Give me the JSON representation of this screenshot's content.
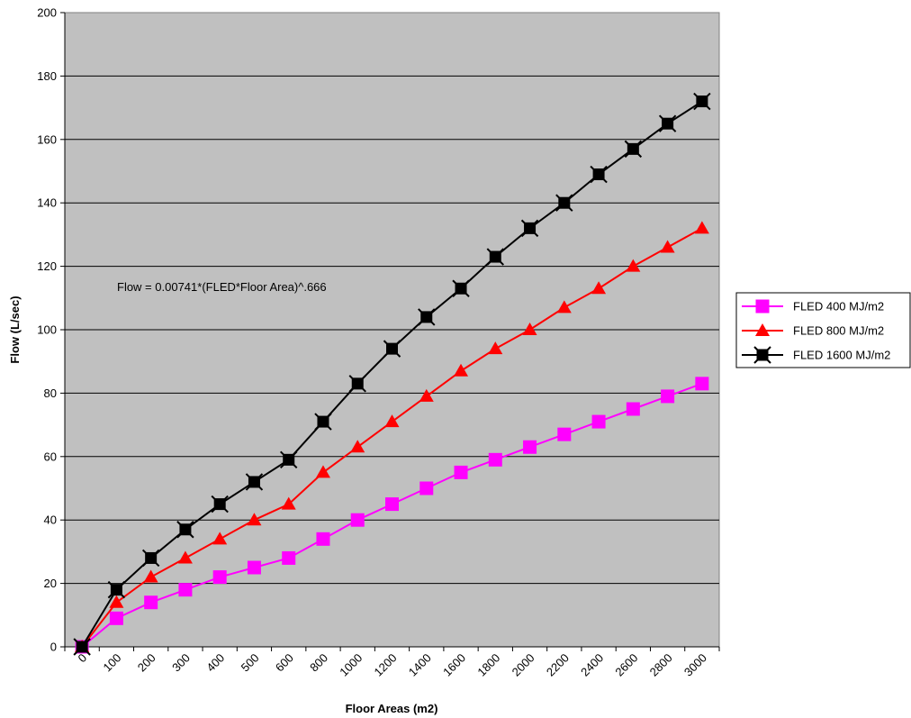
{
  "chart_data": {
    "type": "line",
    "title": "",
    "xlabel": "Floor Areas (m2)",
    "ylabel": "Flow (L/sec)",
    "categories": [
      "0",
      "100",
      "200",
      "300",
      "400",
      "500",
      "600",
      "800",
      "1000",
      "1200",
      "1400",
      "1600",
      "1800",
      "2000",
      "2200",
      "2400",
      "2600",
      "2800",
      "3000"
    ],
    "ylim": [
      0,
      200
    ],
    "yticks": [
      0,
      20,
      40,
      60,
      80,
      100,
      120,
      140,
      160,
      180,
      200
    ],
    "grid": true,
    "legend_position": "right",
    "annotation": "Flow = 0.00741*(FLED*Floor Area)^.666",
    "series": [
      {
        "name": "FLED 400 MJ/m2",
        "color": "#ff00ff",
        "marker": "square",
        "values": [
          0,
          9,
          14,
          18,
          22,
          25,
          28,
          34,
          40,
          45,
          50,
          55,
          59,
          63,
          67,
          71,
          75,
          79,
          83
        ]
      },
      {
        "name": "FLED 800 MJ/m2",
        "color": "#ff0000",
        "marker": "triangle",
        "values": [
          0,
          14,
          22,
          28,
          34,
          40,
          45,
          55,
          63,
          71,
          79,
          87,
          94,
          100,
          107,
          113,
          120,
          126,
          132
        ]
      },
      {
        "name": "FLED 1600 MJ/m2",
        "color": "#000000",
        "marker": "star-square",
        "values": [
          0,
          18,
          28,
          37,
          45,
          52,
          59,
          71,
          83,
          94,
          104,
          113,
          123,
          132,
          140,
          149,
          157,
          165,
          172
        ]
      }
    ]
  },
  "colors": {
    "plot_background": "#c0c0c0",
    "gridline": "#000000"
  }
}
